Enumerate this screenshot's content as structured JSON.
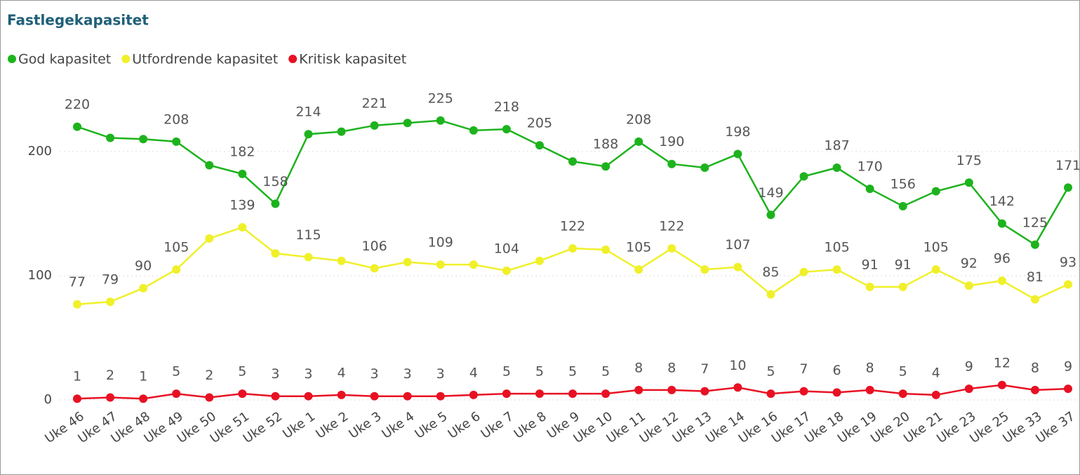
{
  "chart_data": {
    "type": "line",
    "title": "Fastlegekapasitet",
    "categories": [
      "Uke 46",
      "Uke 47",
      "Uke 48",
      "Uke 49",
      "Uke 50",
      "Uke 51",
      "Uke 52",
      "Uke 1",
      "Uke 2",
      "Uke 3",
      "Uke 4",
      "Uke 5",
      "Uke 6",
      "Uke 7",
      "Uke 8",
      "Uke 9",
      "Uke 10",
      "Uke 11",
      "Uke 12",
      "Uke 13",
      "Uke 14",
      "Uke 16",
      "Uke 17",
      "Uke 18",
      "Uke 19",
      "Uke 20",
      "Uke 21",
      "Uke 23",
      "Uke 25",
      "Uke 33",
      "Uke 37"
    ],
    "series": [
      {
        "name": "God kapasitet",
        "color": "#1db31d",
        "values": [
          220,
          211,
          210,
          208,
          189,
          182,
          158,
          214,
          216,
          221,
          223,
          225,
          217,
          218,
          205,
          192,
          188,
          208,
          190,
          187,
          198,
          149,
          180,
          187,
          170,
          156,
          168,
          175,
          142,
          125,
          171
        ],
        "value_labels": [
          "220",
          null,
          null,
          "208",
          null,
          "182",
          "158",
          "214",
          null,
          "221",
          null,
          "225",
          null,
          "218",
          "205",
          null,
          "188",
          "208",
          "190",
          null,
          "198",
          "149",
          null,
          "187",
          "170",
          "156",
          null,
          "175",
          "142",
          "125",
          "171"
        ]
      },
      {
        "name": "Utfordrende kapasitet",
        "color": "#f0f02a",
        "values": [
          77,
          79,
          90,
          105,
          130,
          139,
          118,
          115,
          112,
          106,
          111,
          109,
          109,
          104,
          112,
          122,
          121,
          105,
          122,
          105,
          107,
          85,
          103,
          105,
          91,
          91,
          105,
          92,
          96,
          81,
          93
        ],
        "value_labels": [
          "77",
          "79",
          "90",
          "105",
          null,
          "139",
          null,
          "115",
          null,
          "106",
          null,
          "109",
          null,
          "104",
          null,
          "122",
          null,
          "105",
          "122",
          null,
          "107",
          "85",
          null,
          "105",
          "91",
          "91",
          "105",
          "92",
          "96",
          "81",
          "93"
        ]
      },
      {
        "name": "Kritisk kapasitet",
        "color": "#e81123",
        "values": [
          1,
          2,
          1,
          5,
          2,
          5,
          3,
          3,
          4,
          3,
          3,
          3,
          4,
          5,
          5,
          5,
          5,
          8,
          8,
          7,
          10,
          5,
          7,
          6,
          8,
          5,
          4,
          9,
          12,
          8,
          9
        ],
        "value_labels": [
          "1",
          "2",
          "1",
          "5",
          "2",
          "5",
          "3",
          "3",
          "4",
          "3",
          "3",
          "3",
          "4",
          "5",
          "5",
          "5",
          "5",
          "8",
          "8",
          "7",
          "10",
          "5",
          "7",
          "6",
          "8",
          "5",
          "4",
          "9",
          "12",
          "8",
          "9"
        ]
      }
    ],
    "ylim": [
      0,
      250
    ],
    "yticks": [
      0,
      100,
      200
    ],
    "grid": true,
    "legend": "top-left"
  }
}
